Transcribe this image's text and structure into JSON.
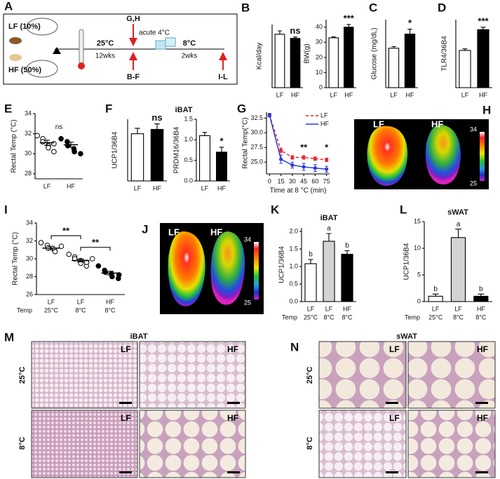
{
  "schematic": {
    "panel": "A",
    "diets": [
      "LF (10%)",
      "HF (50%)"
    ],
    "phase1": {
      "temp": "25°C",
      "duration": "12wks"
    },
    "acute": {
      "label": "G,H",
      "note": "acute 4°C"
    },
    "phase2": {
      "temp": "8°C",
      "duration": "2wks"
    },
    "samples": [
      "B-F",
      "I-L"
    ]
  },
  "chart_data": [
    {
      "panel": "B",
      "type": "bar",
      "ylabel": "Kcal/day",
      "categories": [
        "LF",
        "HF"
      ],
      "values": [
        22,
        20.3
      ],
      "errors": [
        1.4,
        0.6
      ],
      "colors": [
        "#ffffff",
        "#000000"
      ],
      "ylim": [
        0,
        26
      ],
      "annotation": "ns"
    },
    {
      "type": "bar",
      "ylabel": "BW(g)",
      "categories": [
        "LF",
        "HF"
      ],
      "values": [
        33,
        40
      ],
      "errors": [
        0.6,
        1.8
      ],
      "colors": [
        "#ffffff",
        "#000000"
      ],
      "ylim": [
        0,
        45
      ],
      "yticks": [
        0,
        10,
        20,
        30,
        40
      ],
      "annotation": "***"
    },
    {
      "panel": "C",
      "type": "bar",
      "ylabel": "Glucose (mg/dL)",
      "categories": [
        "LF",
        "HF"
      ],
      "values": [
        145,
        197
      ],
      "errors": [
        6,
        18
      ],
      "colors": [
        "#ffffff",
        "#000000"
      ],
      "ylim": [
        0,
        250
      ],
      "annotation": "*"
    },
    {
      "panel": "D",
      "type": "bar",
      "ylabel": "TLR4/36B4",
      "categories": [
        "LF",
        "HF"
      ],
      "values": [
        0.93,
        1.45
      ],
      "errors": [
        0.04,
        0.06
      ],
      "colors": [
        "#ffffff",
        "#000000"
      ],
      "ylim": [
        0,
        1.7
      ],
      "annotation": "***"
    },
    {
      "panel": "E",
      "type": "strip",
      "ylabel": "Rectal Temp (°C)",
      "categories": [
        "LF",
        "HF"
      ],
      "points": [
        [
          31.8,
          31.5,
          31.2,
          30.8,
          30.6,
          31.0,
          30.2
        ],
        [
          31.5,
          31.2,
          30.8,
          30.5,
          30.2,
          30.0
        ]
      ],
      "values": [
        31.1,
        30.9
      ],
      "errors": [
        0.25,
        0.25
      ],
      "marker_fills": [
        "#ffffff",
        "#000000"
      ],
      "ylim": [
        27.5,
        34
      ],
      "yticks": [
        28,
        30,
        32,
        34
      ],
      "annotation": "ns"
    },
    {
      "panel": "F",
      "title": "iBAT",
      "type": "bar",
      "ylabel": "UCP1/36B4",
      "categories": [
        "LF",
        "HF"
      ],
      "values": [
        1.3,
        1.42
      ],
      "errors": [
        0.15,
        0.15
      ],
      "colors": [
        "#ffffff",
        "#000000"
      ],
      "ylim": [
        0,
        1.7
      ],
      "annotation": "ns"
    },
    {
      "type": "bar",
      "ylabel": "PRDM16/36B4",
      "categories": [
        "LF",
        "HF"
      ],
      "values": [
        1.1,
        0.7
      ],
      "errors": [
        0.08,
        0.12
      ],
      "colors": [
        "#ffffff",
        "#000000"
      ],
      "ylim": [
        0,
        1.5
      ],
      "yticks": [
        {
          "value": 0,
          "label": "0.0"
        },
        {
          "value": 0.5,
          "label": "0.5"
        },
        {
          "value": 1,
          "label": "1.0"
        },
        {
          "value": 1.5,
          "label": "1.5"
        }
      ],
      "annotation": "*"
    },
    {
      "panel": "G",
      "type": "line",
      "ylabel": "Rectal Temp(°C)",
      "xlabel": "Time at 8 °C (min)",
      "x": [
        0,
        15,
        30,
        45,
        60,
        75
      ],
      "xlim": [
        -4,
        79
      ],
      "xticks": [
        0,
        15,
        30,
        45,
        60,
        75
      ],
      "ylim": [
        23,
        33.5
      ],
      "yticks": [
        {
          "value": 25,
          "label": "25.0"
        },
        {
          "value": 27.5,
          "label": "27.5"
        },
        {
          "value": 30,
          "label": "30.0"
        },
        {
          "value": 32.5,
          "label": "32.5"
        }
      ],
      "legend": "top-right",
      "series": [
        {
          "name": "LF",
          "color": "#e8262b",
          "dashed": true,
          "values": [
            33,
            27,
            25.8,
            25.8,
            25.6,
            25.4
          ],
          "errors": [
            0.2,
            0.4,
            0.3,
            0.3,
            0.3,
            0.3
          ]
        },
        {
          "name": "HF",
          "color": "#2b3bd6",
          "dashed": false,
          "values": [
            33,
            25.5,
            24.5,
            24.2,
            24,
            23.8
          ],
          "errors": [
            0.3,
            0.7,
            0.5,
            0.6,
            0.6,
            0.5
          ]
        }
      ],
      "annotations": [
        {
          "x": 45,
          "text": "**"
        },
        {
          "x": 75,
          "text": "*"
        }
      ]
    },
    {
      "panel": "I",
      "type": "strip",
      "ylabel": "Rectal Temp (°C)",
      "categories": [
        "LF",
        "LF",
        "HF"
      ],
      "conditions": [
        "25°C",
        "8°C",
        "8°C"
      ],
      "condition_label": "Temp",
      "points": [
        [
          31.8,
          31.5,
          31.2,
          31.0,
          30.8,
          31.4
        ],
        [
          30.5,
          30.2,
          30.0,
          29.8,
          29.5,
          29.2,
          29.6,
          30.0
        ],
        [
          29.2,
          28.7,
          28.5,
          28.3,
          28.0,
          27.8,
          28.2
        ]
      ],
      "values": [
        31.2,
        29.8,
        28.4
      ],
      "errors": [
        0.2,
        0.15,
        0.2
      ],
      "marker_fills": [
        "#ffffff",
        "#ffffff",
        "#000000"
      ],
      "ylim": [
        26,
        34
      ],
      "yticks": [
        26,
        28,
        30,
        32,
        34
      ],
      "annotations": [
        "**",
        "**"
      ]
    },
    {
      "panel": "K",
      "title": "iBAT",
      "type": "bar",
      "ylabel": "UCP1/36B4",
      "categories": [
        "LF",
        "LF",
        "HF"
      ],
      "conditions": [
        "25°C",
        "8°C",
        "8°C"
      ],
      "condition_label": "Temp",
      "values": [
        1.08,
        1.72,
        1.35
      ],
      "errors": [
        0.12,
        0.22,
        0.1
      ],
      "colors": [
        "#ffffff",
        "#d3d3d3",
        "#000000"
      ],
      "letters": [
        "b",
        "a",
        "b"
      ],
      "ylim": [
        0,
        2.1
      ],
      "yticks": [
        {
          "value": 0,
          "label": "0.0"
        },
        {
          "value": 0.5,
          "label": "0.5"
        },
        {
          "value": 1,
          "label": "1.0"
        },
        {
          "value": 1.5,
          "label": "1.5"
        },
        {
          "value": 2,
          "label": "2.0"
        }
      ]
    },
    {
      "panel": "L",
      "title": "sWAT",
      "type": "bar",
      "ylabel": "UCP1/36B4",
      "categories": [
        "LF",
        "LF",
        "HF"
      ],
      "conditions": [
        "25°C",
        "8°C",
        "8°C"
      ],
      "condition_label": "Temp",
      "values": [
        1.0,
        12.0,
        1.0
      ],
      "errors": [
        0.4,
        1.6,
        0.4
      ],
      "colors": [
        "#ffffff",
        "#d3d3d3",
        "#000000"
      ],
      "letters": [
        "b",
        "a",
        "b"
      ],
      "ylim": [
        0,
        15
      ],
      "yticks": [
        0,
        5,
        10,
        15
      ]
    }
  ],
  "thermal_images": [
    {
      "panel": "H",
      "labels": [
        "LF",
        "HF"
      ],
      "scale": [
        34,
        25
      ]
    },
    {
      "panel": "J",
      "labels": [
        "LF",
        "HF"
      ],
      "scale": [
        34,
        25
      ]
    }
  ],
  "histology": [
    {
      "panel": "M",
      "title": "iBAT",
      "rows": [
        "25°C",
        "8°C"
      ],
      "columns": [
        "LF",
        "HF"
      ]
    },
    {
      "panel": "N",
      "title": "sWAT",
      "rows": [
        "25°C",
        "8°C"
      ],
      "columns": [
        "LF",
        "HF"
      ]
    }
  ]
}
